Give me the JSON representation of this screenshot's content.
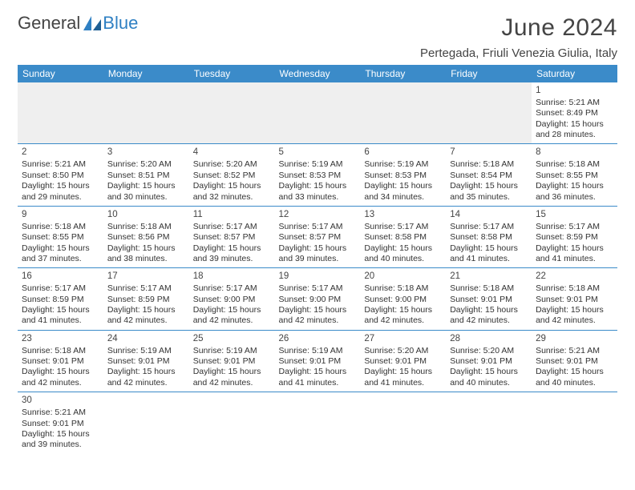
{
  "brand": {
    "name1": "General",
    "name2": "Blue"
  },
  "title": "June 2024",
  "location": "Pertegada, Friuli Venezia Giulia, Italy",
  "colors": {
    "header_bg": "#3b8bc9",
    "header_fg": "#ffffff",
    "rule": "#3b8bc9",
    "blank_bg": "#efefef",
    "title_fg": "#444444",
    "text_fg": "#333333",
    "brand_blue": "#2f80c3"
  },
  "typography": {
    "title_fontsize": 30,
    "location_fontsize": 15,
    "header_fontsize": 12,
    "cell_fontsize": 10.5,
    "daynum_fontsize": 11.5
  },
  "weekdays": [
    "Sunday",
    "Monday",
    "Tuesday",
    "Wednesday",
    "Thursday",
    "Friday",
    "Saturday"
  ],
  "weeks": [
    [
      null,
      null,
      null,
      null,
      null,
      null,
      {
        "n": "1",
        "sunrise": "Sunrise: 5:21 AM",
        "sunset": "Sunset: 8:49 PM",
        "daylight": "Daylight: 15 hours and 28 minutes."
      }
    ],
    [
      {
        "n": "2",
        "sunrise": "Sunrise: 5:21 AM",
        "sunset": "Sunset: 8:50 PM",
        "daylight": "Daylight: 15 hours and 29 minutes."
      },
      {
        "n": "3",
        "sunrise": "Sunrise: 5:20 AM",
        "sunset": "Sunset: 8:51 PM",
        "daylight": "Daylight: 15 hours and 30 minutes."
      },
      {
        "n": "4",
        "sunrise": "Sunrise: 5:20 AM",
        "sunset": "Sunset: 8:52 PM",
        "daylight": "Daylight: 15 hours and 32 minutes."
      },
      {
        "n": "5",
        "sunrise": "Sunrise: 5:19 AM",
        "sunset": "Sunset: 8:53 PM",
        "daylight": "Daylight: 15 hours and 33 minutes."
      },
      {
        "n": "6",
        "sunrise": "Sunrise: 5:19 AM",
        "sunset": "Sunset: 8:53 PM",
        "daylight": "Daylight: 15 hours and 34 minutes."
      },
      {
        "n": "7",
        "sunrise": "Sunrise: 5:18 AM",
        "sunset": "Sunset: 8:54 PM",
        "daylight": "Daylight: 15 hours and 35 minutes."
      },
      {
        "n": "8",
        "sunrise": "Sunrise: 5:18 AM",
        "sunset": "Sunset: 8:55 PM",
        "daylight": "Daylight: 15 hours and 36 minutes."
      }
    ],
    [
      {
        "n": "9",
        "sunrise": "Sunrise: 5:18 AM",
        "sunset": "Sunset: 8:55 PM",
        "daylight": "Daylight: 15 hours and 37 minutes."
      },
      {
        "n": "10",
        "sunrise": "Sunrise: 5:18 AM",
        "sunset": "Sunset: 8:56 PM",
        "daylight": "Daylight: 15 hours and 38 minutes."
      },
      {
        "n": "11",
        "sunrise": "Sunrise: 5:17 AM",
        "sunset": "Sunset: 8:57 PM",
        "daylight": "Daylight: 15 hours and 39 minutes."
      },
      {
        "n": "12",
        "sunrise": "Sunrise: 5:17 AM",
        "sunset": "Sunset: 8:57 PM",
        "daylight": "Daylight: 15 hours and 39 minutes."
      },
      {
        "n": "13",
        "sunrise": "Sunrise: 5:17 AM",
        "sunset": "Sunset: 8:58 PM",
        "daylight": "Daylight: 15 hours and 40 minutes."
      },
      {
        "n": "14",
        "sunrise": "Sunrise: 5:17 AM",
        "sunset": "Sunset: 8:58 PM",
        "daylight": "Daylight: 15 hours and 41 minutes."
      },
      {
        "n": "15",
        "sunrise": "Sunrise: 5:17 AM",
        "sunset": "Sunset: 8:59 PM",
        "daylight": "Daylight: 15 hours and 41 minutes."
      }
    ],
    [
      {
        "n": "16",
        "sunrise": "Sunrise: 5:17 AM",
        "sunset": "Sunset: 8:59 PM",
        "daylight": "Daylight: 15 hours and 41 minutes."
      },
      {
        "n": "17",
        "sunrise": "Sunrise: 5:17 AM",
        "sunset": "Sunset: 8:59 PM",
        "daylight": "Daylight: 15 hours and 42 minutes."
      },
      {
        "n": "18",
        "sunrise": "Sunrise: 5:17 AM",
        "sunset": "Sunset: 9:00 PM",
        "daylight": "Daylight: 15 hours and 42 minutes."
      },
      {
        "n": "19",
        "sunrise": "Sunrise: 5:17 AM",
        "sunset": "Sunset: 9:00 PM",
        "daylight": "Daylight: 15 hours and 42 minutes."
      },
      {
        "n": "20",
        "sunrise": "Sunrise: 5:18 AM",
        "sunset": "Sunset: 9:00 PM",
        "daylight": "Daylight: 15 hours and 42 minutes."
      },
      {
        "n": "21",
        "sunrise": "Sunrise: 5:18 AM",
        "sunset": "Sunset: 9:01 PM",
        "daylight": "Daylight: 15 hours and 42 minutes."
      },
      {
        "n": "22",
        "sunrise": "Sunrise: 5:18 AM",
        "sunset": "Sunset: 9:01 PM",
        "daylight": "Daylight: 15 hours and 42 minutes."
      }
    ],
    [
      {
        "n": "23",
        "sunrise": "Sunrise: 5:18 AM",
        "sunset": "Sunset: 9:01 PM",
        "daylight": "Daylight: 15 hours and 42 minutes."
      },
      {
        "n": "24",
        "sunrise": "Sunrise: 5:19 AM",
        "sunset": "Sunset: 9:01 PM",
        "daylight": "Daylight: 15 hours and 42 minutes."
      },
      {
        "n": "25",
        "sunrise": "Sunrise: 5:19 AM",
        "sunset": "Sunset: 9:01 PM",
        "daylight": "Daylight: 15 hours and 42 minutes."
      },
      {
        "n": "26",
        "sunrise": "Sunrise: 5:19 AM",
        "sunset": "Sunset: 9:01 PM",
        "daylight": "Daylight: 15 hours and 41 minutes."
      },
      {
        "n": "27",
        "sunrise": "Sunrise: 5:20 AM",
        "sunset": "Sunset: 9:01 PM",
        "daylight": "Daylight: 15 hours and 41 minutes."
      },
      {
        "n": "28",
        "sunrise": "Sunrise: 5:20 AM",
        "sunset": "Sunset: 9:01 PM",
        "daylight": "Daylight: 15 hours and 40 minutes."
      },
      {
        "n": "29",
        "sunrise": "Sunrise: 5:21 AM",
        "sunset": "Sunset: 9:01 PM",
        "daylight": "Daylight: 15 hours and 40 minutes."
      }
    ],
    [
      {
        "n": "30",
        "sunrise": "Sunrise: 5:21 AM",
        "sunset": "Sunset: 9:01 PM",
        "daylight": "Daylight: 15 hours and 39 minutes."
      },
      null,
      null,
      null,
      null,
      null,
      null
    ]
  ]
}
